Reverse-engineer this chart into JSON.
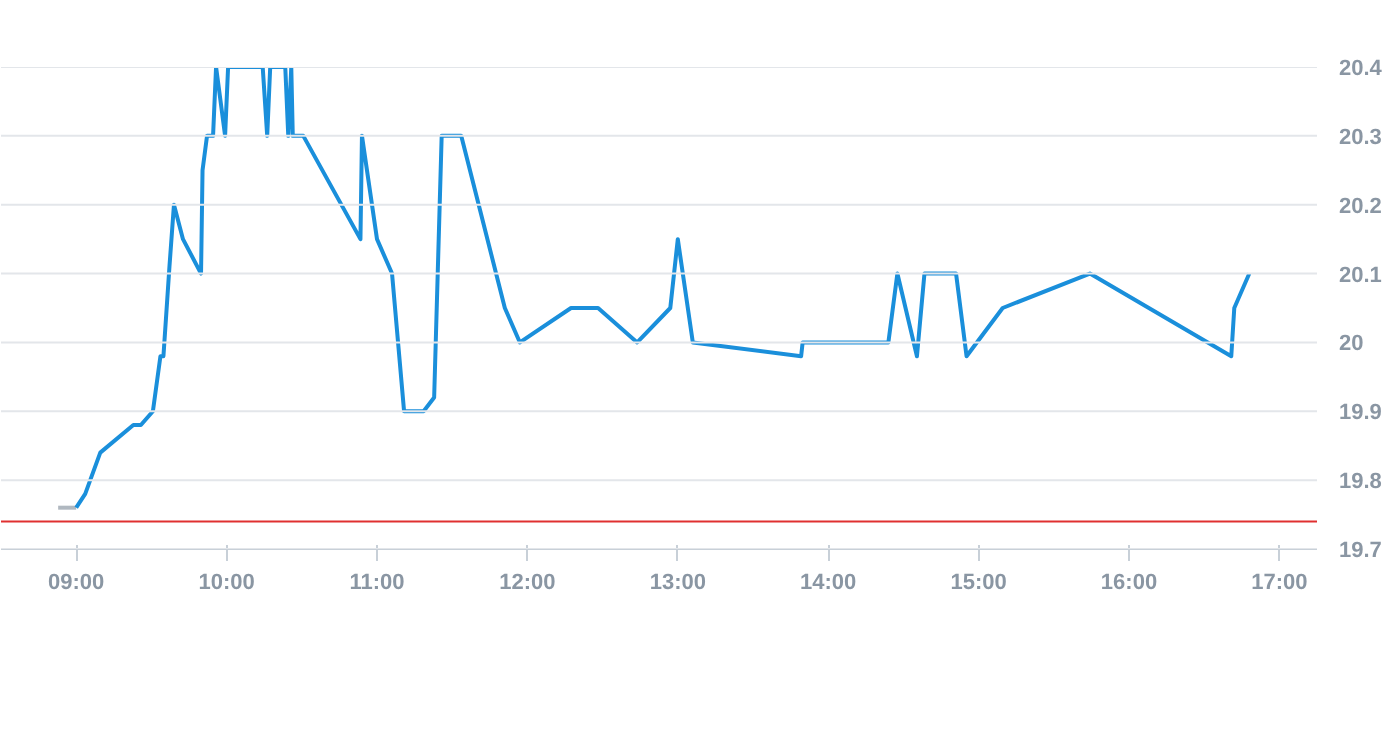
{
  "chart_data": {
    "type": "line",
    "xlim": [
      8.5,
      17.25
    ],
    "ylim": [
      19.7,
      20.4
    ],
    "xticks": [
      {
        "value": 9,
        "label": "09:00"
      },
      {
        "value": 10,
        "label": "10:00"
      },
      {
        "value": 11,
        "label": "11:00"
      },
      {
        "value": 12,
        "label": "12:00"
      },
      {
        "value": 13,
        "label": "13:00"
      },
      {
        "value": 14,
        "label": "14:00"
      },
      {
        "value": 15,
        "label": "15:00"
      },
      {
        "value": 16,
        "label": "16:00"
      },
      {
        "value": 17,
        "label": "17:00"
      }
    ],
    "yticks": [
      19.7,
      19.8,
      19.9,
      20,
      20.1,
      20.2,
      20.3,
      20.4
    ],
    "grid": "y",
    "marker": "none",
    "line_style": "solid",
    "series": [
      {
        "color": "#b0b8c0",
        "x": [
          8.88,
          9.0
        ],
        "values": [
          19.76,
          19.76
        ]
      },
      {
        "color": "#1a8fdb",
        "x": [
          9.0,
          9.06,
          9.16,
          9.38,
          9.43,
          9.51,
          9.56,
          9.58,
          9.62,
          9.65,
          9.71,
          9.83,
          9.84,
          9.87,
          9.91,
          9.93,
          9.99,
          10.01,
          10.24,
          10.27,
          10.29,
          10.39,
          10.41,
          10.43,
          10.44,
          10.51,
          10.89,
          10.9,
          11.0,
          11.1,
          11.18,
          11.31,
          11.38,
          11.43,
          11.56,
          11.85,
          11.95,
          12.29,
          12.47,
          12.73,
          12.95,
          13.0,
          13.1,
          13.82,
          13.83,
          14.4,
          14.46,
          14.59,
          14.64,
          14.85,
          14.92,
          15.16,
          15.74,
          16.68,
          16.7,
          16.8
        ],
        "values": [
          19.76,
          19.78,
          19.84,
          19.88,
          19.88,
          19.9,
          19.98,
          19.98,
          20.11,
          20.2,
          20.15,
          20.1,
          20.25,
          20.3,
          20.3,
          20.4,
          20.3,
          20.4,
          20.4,
          20.3,
          20.4,
          20.4,
          20.3,
          20.4,
          20.3,
          20.3,
          20.15,
          20.3,
          20.15,
          20.1,
          19.9,
          19.9,
          19.92,
          20.3,
          20.3,
          20.05,
          20.0,
          20.05,
          20.05,
          20.0,
          20.05,
          20.15,
          20.0,
          19.98,
          20.0,
          20.0,
          20.1,
          19.98,
          20.1,
          20.1,
          19.98,
          20.05,
          20.1,
          19.98,
          20.05,
          20.1
        ]
      }
    ],
    "ref_lines": [
      {
        "axis": "y",
        "value": 19.74,
        "color": "#e03030",
        "line_style": "solid"
      }
    ]
  }
}
